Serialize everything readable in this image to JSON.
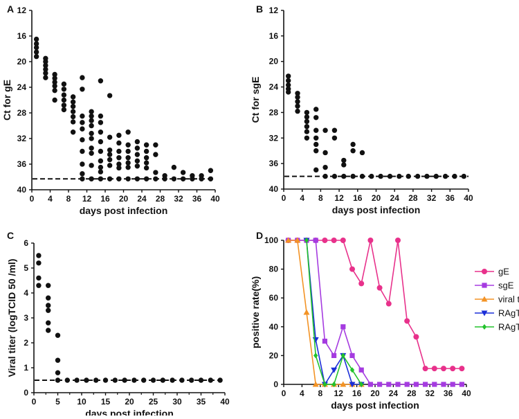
{
  "chart_data": [
    {
      "panel": "A",
      "type": "scatter",
      "xlabel": "days post infection",
      "ylabel": "Ct for gE",
      "xlim": [
        0,
        40
      ],
      "ylim": [
        40,
        12
      ],
      "y_inverted": true,
      "xticks": [
        0,
        4,
        8,
        12,
        16,
        20,
        24,
        28,
        32,
        36,
        40
      ],
      "yticks": [
        12,
        16,
        20,
        24,
        28,
        32,
        36,
        40
      ],
      "threshold": 38.3,
      "points": [
        [
          1,
          16.5
        ],
        [
          1,
          17.2
        ],
        [
          1,
          17.8
        ],
        [
          1,
          18.5
        ],
        [
          1,
          19.2
        ],
        [
          3,
          19.5
        ],
        [
          3,
          20.0
        ],
        [
          3,
          20.6
        ],
        [
          3,
          21.2
        ],
        [
          3,
          21.8
        ],
        [
          3,
          22.5
        ],
        [
          5,
          22.0
        ],
        [
          5,
          22.6
        ],
        [
          5,
          23.2
        ],
        [
          5,
          23.8
        ],
        [
          5,
          24.5
        ],
        [
          5,
          26.0
        ],
        [
          7,
          23.5
        ],
        [
          7,
          24.3
        ],
        [
          7,
          25.2
        ],
        [
          7,
          26.0
        ],
        [
          7,
          26.8
        ],
        [
          7,
          27.5
        ],
        [
          9,
          25.5
        ],
        [
          9,
          26.3
        ],
        [
          9,
          27.0
        ],
        [
          9,
          27.8
        ],
        [
          9,
          28.6
        ],
        [
          9,
          29.4
        ],
        [
          9,
          31.0
        ],
        [
          11,
          22.5
        ],
        [
          11,
          24.3
        ],
        [
          11,
          28.5
        ],
        [
          11,
          29.5
        ],
        [
          11,
          30.5
        ],
        [
          11,
          32.2
        ],
        [
          11,
          34.0
        ],
        [
          11,
          36.0
        ],
        [
          11,
          37.5
        ],
        [
          11,
          38.3
        ],
        [
          13,
          27.8
        ],
        [
          13,
          28.5
        ],
        [
          13,
          29.2
        ],
        [
          13,
          30.0
        ],
        [
          13,
          31.2
        ],
        [
          13,
          32.0
        ],
        [
          13,
          33.5
        ],
        [
          13,
          34.3
        ],
        [
          13,
          36.2
        ],
        [
          13,
          38.3
        ],
        [
          15,
          23.0
        ],
        [
          15,
          28.5
        ],
        [
          15,
          29.5
        ],
        [
          15,
          31.0
        ],
        [
          15,
          32.5
        ],
        [
          15,
          34.0
        ],
        [
          15,
          35.5
        ],
        [
          15,
          36.5
        ],
        [
          15,
          37.2
        ],
        [
          15,
          38.3
        ],
        [
          17,
          25.3
        ],
        [
          17,
          31.8
        ],
        [
          17,
          33.8
        ],
        [
          17,
          34.5
        ],
        [
          17,
          35.3
        ],
        [
          17,
          36.2
        ],
        [
          17,
          38.3
        ],
        [
          19,
          31.5
        ],
        [
          19,
          32.7
        ],
        [
          19,
          34.0
        ],
        [
          19,
          35.0
        ],
        [
          19,
          36.0
        ],
        [
          19,
          36.6
        ],
        [
          19,
          38.3
        ],
        [
          21,
          31.0
        ],
        [
          21,
          33.0
        ],
        [
          21,
          34.0
        ],
        [
          21,
          35.0
        ],
        [
          21,
          35.8
        ],
        [
          21,
          36.5
        ],
        [
          21,
          38.3
        ],
        [
          23,
          32.5
        ],
        [
          23,
          33.5
        ],
        [
          23,
          34.5
        ],
        [
          23,
          35.5
        ],
        [
          23,
          36.3
        ],
        [
          23,
          38.3
        ],
        [
          25,
          33.0
        ],
        [
          25,
          34.0
        ],
        [
          25,
          35.0
        ],
        [
          25,
          35.8
        ],
        [
          25,
          36.6
        ],
        [
          25,
          38.3
        ],
        [
          27,
          33.0
        ],
        [
          27,
          34.5
        ],
        [
          27,
          37.3
        ],
        [
          27,
          38.3
        ],
        [
          29,
          37.8
        ],
        [
          29,
          38.3
        ],
        [
          31,
          36.5
        ],
        [
          31,
          38.3
        ],
        [
          33,
          37.3
        ],
        [
          33,
          38.3
        ],
        [
          35,
          37.8
        ],
        [
          35,
          38.3
        ],
        [
          37,
          37.8
        ],
        [
          37,
          38.3
        ],
        [
          39,
          37.0
        ],
        [
          39,
          38.3
        ]
      ]
    },
    {
      "panel": "B",
      "type": "scatter",
      "xlabel": "days post infection",
      "ylabel": "Ct for sgE",
      "xlim": [
        0,
        40
      ],
      "ylim": [
        40,
        12
      ],
      "y_inverted": true,
      "xticks": [
        0,
        4,
        8,
        12,
        16,
        20,
        24,
        28,
        32,
        36,
        40
      ],
      "yticks": [
        12,
        16,
        20,
        24,
        28,
        32,
        36,
        40
      ],
      "threshold": 38.0,
      "points": [
        [
          1,
          22.3
        ],
        [
          1,
          23.0
        ],
        [
          1,
          23.7
        ],
        [
          1,
          24.3
        ],
        [
          1,
          24.8
        ],
        [
          3,
          25.0
        ],
        [
          3,
          25.6
        ],
        [
          3,
          26.3
        ],
        [
          3,
          27.0
        ],
        [
          3,
          27.8
        ],
        [
          5,
          28.0
        ],
        [
          5,
          28.7
        ],
        [
          5,
          29.4
        ],
        [
          5,
          30.2
        ],
        [
          5,
          31.0
        ],
        [
          5,
          32.0
        ],
        [
          7,
          27.5
        ],
        [
          7,
          28.8
        ],
        [
          7,
          30.8
        ],
        [
          7,
          32.0
        ],
        [
          7,
          33.0
        ],
        [
          7,
          34.0
        ],
        [
          7,
          37.0
        ],
        [
          9,
          30.8
        ],
        [
          9,
          34.3
        ],
        [
          9,
          36.6
        ],
        [
          9,
          38.0
        ],
        [
          11,
          30.8
        ],
        [
          11,
          32.0
        ],
        [
          11,
          38.0
        ],
        [
          13,
          35.5
        ],
        [
          13,
          36.2
        ],
        [
          13,
          38.0
        ],
        [
          15,
          33.0
        ],
        [
          15,
          34.0
        ],
        [
          15,
          38.0
        ],
        [
          17,
          34.3
        ],
        [
          17,
          38.0
        ],
        [
          19,
          38.0
        ],
        [
          21,
          38.0
        ],
        [
          23,
          38.0
        ],
        [
          25,
          38.0
        ],
        [
          27,
          38.0
        ],
        [
          29,
          38.0
        ],
        [
          31,
          38.0
        ],
        [
          33,
          38.0
        ],
        [
          35,
          38.0
        ],
        [
          37,
          38.0
        ],
        [
          39,
          38.0
        ]
      ]
    },
    {
      "panel": "C",
      "type": "scatter",
      "xlabel": "days post infection",
      "ylabel": "Viral titer (logTCID 50 /ml)",
      "xlim": [
        0,
        40
      ],
      "ylim": [
        0,
        6
      ],
      "xticks": [
        0,
        4,
        8,
        12,
        16,
        20,
        24,
        28,
        32,
        36,
        40
      ],
      "xtick_labels": [
        "0",
        "5",
        "10",
        "15",
        "20",
        "25",
        "30",
        "35",
        "40"
      ],
      "xtick_values": [
        0,
        5,
        10,
        15,
        20,
        25,
        30,
        35,
        40
      ],
      "yticks": [
        0,
        1,
        2,
        3,
        4,
        5,
        6
      ],
      "threshold": 0.5,
      "points": [
        [
          1,
          5.5
        ],
        [
          1,
          5.2
        ],
        [
          1,
          4.6
        ],
        [
          1,
          4.3
        ],
        [
          3,
          4.3
        ],
        [
          3,
          3.8
        ],
        [
          3,
          3.5
        ],
        [
          3,
          3.3
        ],
        [
          3,
          2.8
        ],
        [
          3,
          2.5
        ],
        [
          5,
          2.3
        ],
        [
          5,
          1.3
        ],
        [
          5,
          0.8
        ],
        [
          5,
          0.5
        ],
        [
          7,
          0.5
        ],
        [
          9,
          0.5
        ],
        [
          11,
          0.5
        ],
        [
          13,
          0.5
        ],
        [
          15,
          0.5
        ],
        [
          17,
          0.5
        ],
        [
          19,
          0.5
        ],
        [
          21,
          0.5
        ],
        [
          23,
          0.5
        ],
        [
          25,
          0.5
        ],
        [
          27,
          0.5
        ],
        [
          29,
          0.5
        ],
        [
          31,
          0.5
        ],
        [
          33,
          0.5
        ],
        [
          35,
          0.5
        ],
        [
          37,
          0.5
        ],
        [
          39,
          0.5
        ]
      ]
    },
    {
      "panel": "D",
      "type": "line",
      "xlabel": "days post infection",
      "ylabel": "positive rate(%)",
      "xlim": [
        0,
        40
      ],
      "ylim": [
        0,
        100
      ],
      "xticks": [
        0,
        4,
        8,
        12,
        16,
        20,
        24,
        28,
        32,
        36,
        40
      ],
      "yticks": [
        0,
        20,
        40,
        60,
        80,
        100
      ],
      "series": [
        {
          "name": "gE",
          "color": "#e8318b",
          "marker": "circle",
          "x": [
            1,
            3,
            5,
            7,
            9,
            11,
            13,
            15,
            17,
            19,
            21,
            23,
            25,
            27,
            29,
            31,
            33,
            35,
            37,
            39
          ],
          "values": [
            100,
            100,
            100,
            100,
            100,
            100,
            100,
            80,
            70,
            100,
            67,
            56,
            100,
            44,
            33,
            11,
            11,
            11,
            11,
            11
          ]
        },
        {
          "name": "sgE",
          "color": "#a53be0",
          "marker": "square",
          "x": [
            1,
            3,
            5,
            7,
            9,
            11,
            13,
            15,
            17,
            19,
            21,
            23,
            25,
            27,
            29,
            31,
            33,
            35,
            37,
            39
          ],
          "values": [
            100,
            100,
            100,
            100,
            30,
            20,
            40,
            20,
            10,
            0,
            0,
            0,
            0,
            0,
            0,
            0,
            0,
            0,
            0,
            0
          ]
        },
        {
          "name": "viral titer",
          "color": "#f39325",
          "marker": "triangle-up",
          "x": [
            1,
            3,
            5,
            7,
            9,
            11,
            13,
            15,
            17
          ],
          "values": [
            100,
            100,
            50,
            0,
            0,
            0,
            0,
            0,
            0
          ]
        },
        {
          "name": "RAgT-WF",
          "color": "#1a2ed8",
          "marker": "triangle-down",
          "x": [
            5,
            7,
            9,
            11,
            13,
            15,
            17
          ],
          "values": [
            100,
            31,
            0,
            10,
            20,
            0,
            0
          ]
        },
        {
          "name": "RAgT-CD",
          "color": "#22c22c",
          "marker": "diamond",
          "x": [
            5,
            7,
            9,
            11,
            13,
            15,
            17
          ],
          "values": [
            100,
            20,
            0,
            0,
            20,
            10,
            0
          ]
        }
      ]
    }
  ]
}
